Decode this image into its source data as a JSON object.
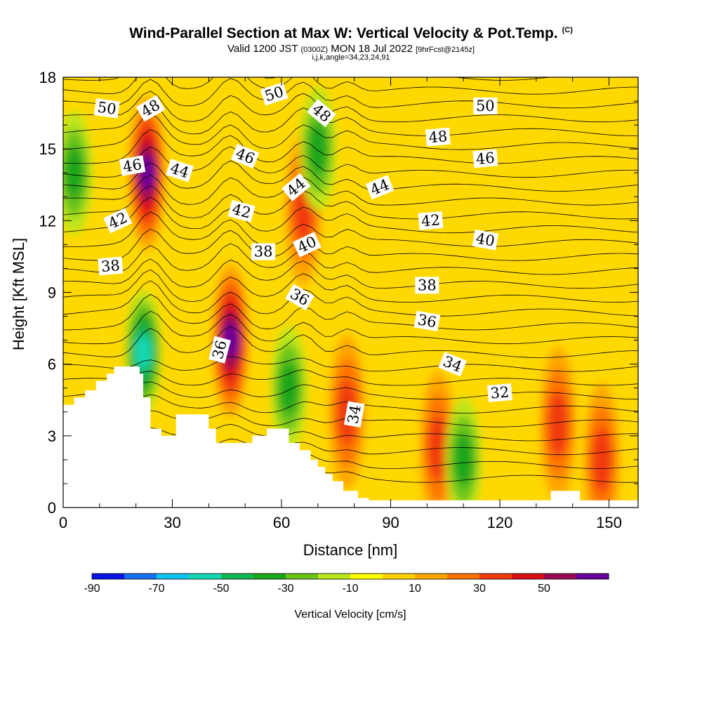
{
  "title": {
    "main": "Wind-Parallel Section at Max W: Vertical Velocity & Pot.Temp.",
    "copyright": "(C)",
    "valid_prefix": "Valid 1200 JST",
    "valid_utc": "(0300Z)",
    "valid_date": "MON 18 Jul 2022",
    "forecast": "[9hrFcst@2145z]",
    "indices": "i,j,k,angle=34,23,24,91"
  },
  "chart_data": {
    "type": "heatmap",
    "xlabel": "Distance [nm]",
    "ylabel": "Height [Kft MSL]",
    "xlim": [
      0,
      158
    ],
    "ylim": [
      0,
      18
    ],
    "x_ticks": [
      0,
      30,
      60,
      90,
      120,
      150
    ],
    "y_ticks": [
      0,
      3,
      6,
      9,
      12,
      15,
      18
    ],
    "colorbar": {
      "title": "Vertical Velocity [cm/s]",
      "levels": [
        -90,
        -80,
        -70,
        -60,
        -50,
        -40,
        -30,
        -20,
        -10,
        0,
        10,
        20,
        30,
        40,
        50,
        60
      ],
      "tick_labels": [
        "-90",
        "-70",
        "-50",
        "-30",
        "-10",
        "10",
        "30",
        "50"
      ],
      "colors": [
        "#0a14e0",
        "#1570f0",
        "#11c2f0",
        "#14d8b4",
        "#13b655",
        "#1aa61a",
        "#6ac41a",
        "#bde61a",
        "#ffff00",
        "#ffd200",
        "#ffa600",
        "#ff7400",
        "#f03a0a",
        "#dc0f14",
        "#9b0a50",
        "#660099"
      ]
    },
    "background_color": "#ffd800",
    "w_cores": [
      {
        "x": 23,
        "y": 14,
        "w": 60,
        "desc": "updraft"
      },
      {
        "x": 46,
        "y": 7,
        "w": 60,
        "desc": "updraft"
      },
      {
        "x": 66,
        "y": 12.5,
        "w": 35,
        "desc": "updraft"
      },
      {
        "x": 78,
        "y": 4,
        "w": 30,
        "desc": "updraft"
      },
      {
        "x": 103,
        "y": 2.5,
        "w": 30,
        "desc": "updraft"
      },
      {
        "x": 136,
        "y": 3.5,
        "w": 30,
        "desc": "updraft"
      },
      {
        "x": 148,
        "y": 2,
        "w": 30,
        "desc": "updraft"
      },
      {
        "x": 22,
        "y": 6.5,
        "w": -50,
        "desc": "downdraft"
      },
      {
        "x": 3,
        "y": 14,
        "w": -30,
        "desc": "downdraft"
      },
      {
        "x": 70,
        "y": 15,
        "w": -30,
        "desc": "downdraft"
      },
      {
        "x": 62,
        "y": 5,
        "w": -30,
        "desc": "downdraft"
      },
      {
        "x": 110,
        "y": 2,
        "w": -30,
        "desc": "downdraft"
      }
    ],
    "terrain_heights_kft": [
      [
        0,
        4.3
      ],
      [
        3,
        4.6
      ],
      [
        6,
        4.9
      ],
      [
        9,
        5.3
      ],
      [
        12,
        5.6
      ],
      [
        14,
        5.9
      ],
      [
        20,
        5.9
      ],
      [
        21,
        5.6
      ],
      [
        22,
        4.6
      ],
      [
        24,
        3.3
      ],
      [
        27,
        3.0
      ],
      [
        31,
        3.9
      ],
      [
        40,
        3.3
      ],
      [
        42,
        2.7
      ],
      [
        52,
        3.0
      ],
      [
        56,
        3.3
      ],
      [
        60,
        3.3
      ],
      [
        62,
        2.7
      ],
      [
        65,
        2.4
      ],
      [
        68,
        2.0
      ],
      [
        70,
        1.7
      ],
      [
        72,
        1.4
      ],
      [
        74,
        1.1
      ],
      [
        77,
        0.7
      ],
      [
        81,
        0.4
      ],
      [
        84,
        0.3
      ],
      [
        100,
        0.3
      ],
      [
        131,
        0.3
      ],
      [
        134,
        0.7
      ],
      [
        140,
        0.7
      ],
      [
        142,
        0.3
      ],
      [
        150,
        0.3
      ],
      [
        158,
        0.3
      ]
    ],
    "theta_contour_labels": [
      {
        "text": "50",
        "x": 12,
        "y": 16.7,
        "angle": 8
      },
      {
        "text": "48",
        "x": 24,
        "y": 16.7,
        "angle": -30
      },
      {
        "text": "50",
        "x": 58,
        "y": 17.3,
        "angle": -18
      },
      {
        "text": "48",
        "x": 71,
        "y": 16.5,
        "angle": 40
      },
      {
        "text": "50",
        "x": 116,
        "y": 16.8,
        "angle": 0
      },
      {
        "text": "48",
        "x": 103,
        "y": 15.5,
        "angle": -5
      },
      {
        "text": "46",
        "x": 19,
        "y": 14.3,
        "angle": -10
      },
      {
        "text": "44",
        "x": 32,
        "y": 14.1,
        "angle": 18
      },
      {
        "text": "46",
        "x": 50,
        "y": 14.7,
        "angle": 22
      },
      {
        "text": "44",
        "x": 64,
        "y": 13.4,
        "angle": -40
      },
      {
        "text": "44",
        "x": 87,
        "y": 13.4,
        "angle": -22
      },
      {
        "text": "46",
        "x": 116,
        "y": 14.6,
        "angle": -5
      },
      {
        "text": "42",
        "x": 15,
        "y": 12.0,
        "angle": -25
      },
      {
        "text": "42",
        "x": 49,
        "y": 12.4,
        "angle": 15
      },
      {
        "text": "42",
        "x": 101,
        "y": 12.0,
        "angle": -5
      },
      {
        "text": "40",
        "x": 67,
        "y": 11.0,
        "angle": -25
      },
      {
        "text": "40",
        "x": 116,
        "y": 11.2,
        "angle": 10
      },
      {
        "text": "38",
        "x": 13,
        "y": 10.1,
        "angle": -5
      },
      {
        "text": "38",
        "x": 55,
        "y": 10.7,
        "angle": 0
      },
      {
        "text": "38",
        "x": 100,
        "y": 9.3,
        "angle": 0
      },
      {
        "text": "36",
        "x": 65,
        "y": 8.8,
        "angle": 30
      },
      {
        "text": "36",
        "x": 100,
        "y": 7.8,
        "angle": 10
      },
      {
        "text": "36",
        "x": 43,
        "y": 6.6,
        "angle": -75
      },
      {
        "text": "34",
        "x": 107,
        "y": 6.0,
        "angle": 22
      },
      {
        "text": "34",
        "x": 80,
        "y": 3.9,
        "angle": -80
      },
      {
        "text": "32",
        "x": 120,
        "y": 4.8,
        "angle": -5
      }
    ]
  }
}
